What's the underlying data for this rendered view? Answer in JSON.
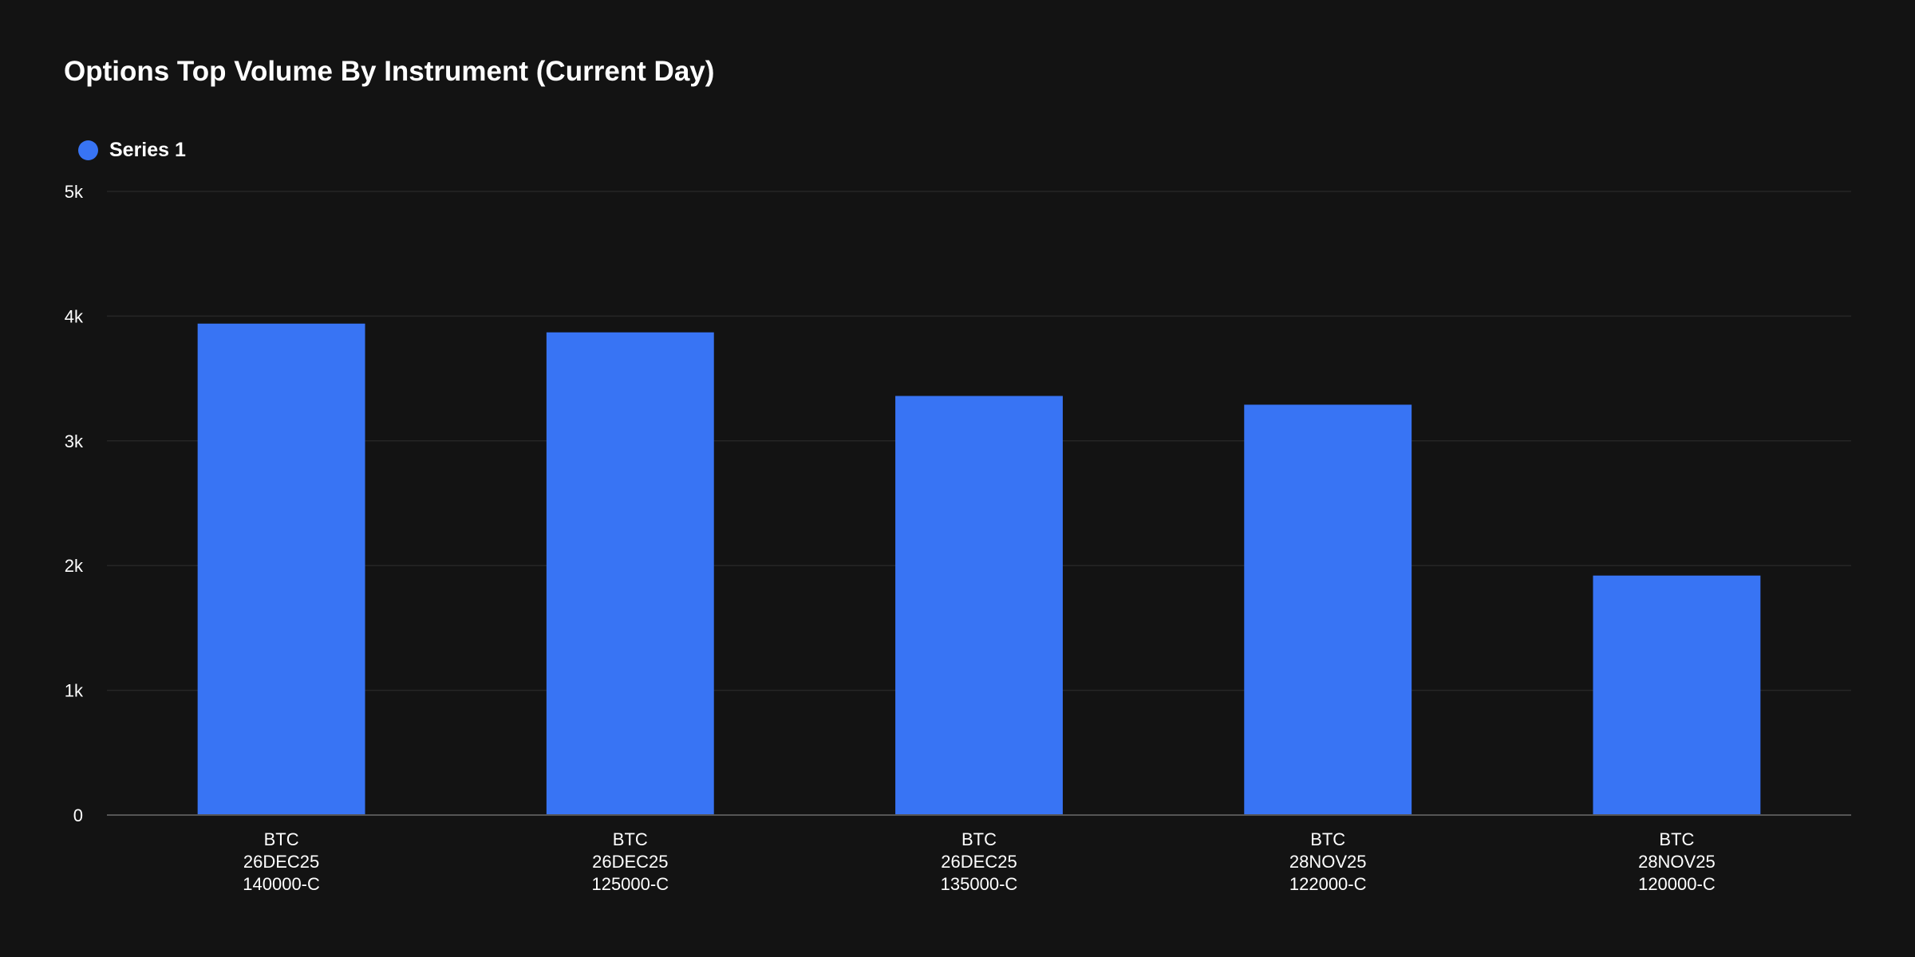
{
  "chart_data": {
    "type": "bar",
    "title": "Options Top Volume By Instrument (Current Day)",
    "xlabel": "",
    "ylabel": "",
    "ylim": [
      0,
      5000
    ],
    "yticks": [
      0,
      1000,
      2000,
      3000,
      4000,
      5000
    ],
    "ytick_labels": [
      "0",
      "1k",
      "2k",
      "3k",
      "4k",
      "5k"
    ],
    "grid": true,
    "legend_position": "top-left",
    "categories": [
      [
        "BTC",
        "26DEC25",
        "140000-C"
      ],
      [
        "BTC",
        "26DEC25",
        "125000-C"
      ],
      [
        "BTC",
        "26DEC25",
        "135000-C"
      ],
      [
        "BTC",
        "28NOV25",
        "122000-C"
      ],
      [
        "BTC",
        "28NOV25",
        "120000-C"
      ]
    ],
    "series": [
      {
        "name": "Series 1",
        "color": "#3874f4",
        "values": [
          3940,
          3870,
          3360,
          3290,
          1920
        ]
      }
    ]
  }
}
